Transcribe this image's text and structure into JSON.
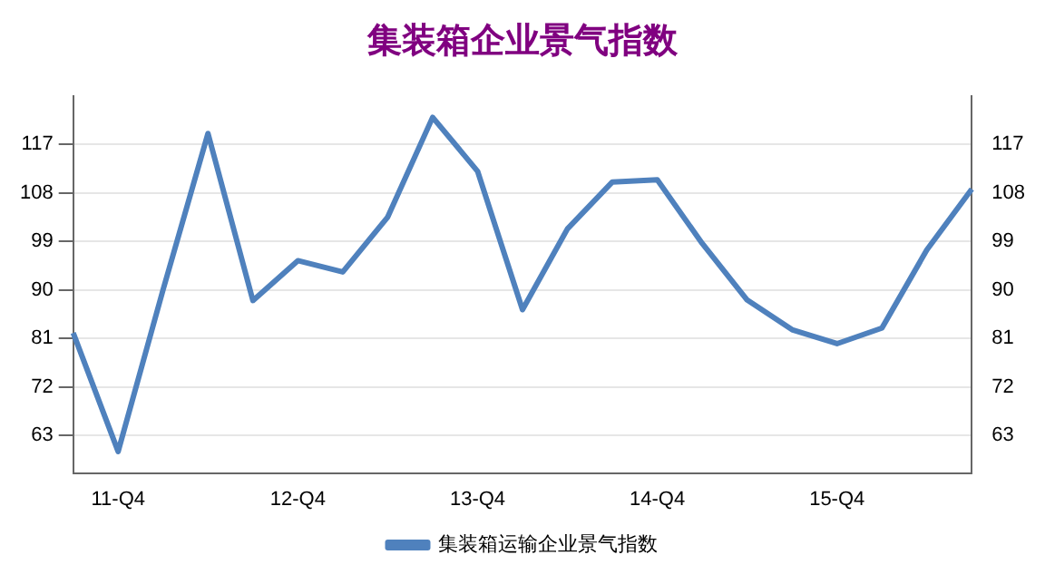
{
  "chart_data": {
    "type": "line",
    "title": "集装箱企业景气指数",
    "categories": [
      null,
      "11-Q4",
      null,
      null,
      null,
      "12-Q4",
      null,
      null,
      null,
      "13-Q4",
      null,
      null,
      null,
      "14-Q4",
      null,
      null,
      null,
      "15-Q4",
      null,
      null,
      null
    ],
    "series": [
      {
        "name": "集装箱运输企业景气指数",
        "color": "#4f81bd",
        "values": [
          82,
          60,
          90,
          119,
          88,
          95.4,
          93.3,
          103.5,
          122,
          112,
          86.3,
          101.3,
          110,
          110.4,
          98.6,
          88.1,
          82.6,
          80,
          82.9,
          97.4,
          108.7
        ]
      }
    ],
    "ylim": [
      56,
      126
    ],
    "yticks": [
      63,
      72,
      81,
      90,
      99,
      108,
      117
    ],
    "y2lim": [
      56,
      126
    ],
    "y2ticks": [
      63,
      72,
      81,
      90,
      99,
      108,
      117
    ],
    "grid": "y",
    "legend": "bottom",
    "marker": "none",
    "line_style": "solid"
  }
}
